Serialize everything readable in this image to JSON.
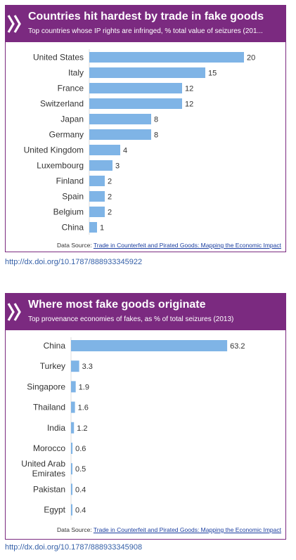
{
  "charts": [
    {
      "title": "Countries hit hardest by trade in fake goods",
      "subtitle": "Top countries whose IP rights are infringed, % total value of seizures (201...",
      "source_label": "Data Source:",
      "source_link": "Trade in Counterfeit and Pirated Goods: Mapping the Economic Impact",
      "doi": "http://dx.doi.org/10.1787/888933345922"
    },
    {
      "title": "Where most fake goods originate",
      "subtitle": "Top provenance economies of fakes, as % of total seizures (2013)",
      "source_label": "Data Source:",
      "source_link": "Trade in Counterfeit and Pirated Goods: Mapping the Economic Impact",
      "doi": "http://dx.doi.org/10.1787/888933345908"
    }
  ],
  "colors": {
    "header": "#7b2a80",
    "bar": "#7fb4e6",
    "text": "#333333",
    "link": "#3560a8"
  },
  "chart_data": [
    {
      "type": "bar",
      "orientation": "horizontal",
      "title": "Countries hit hardest by trade in fake goods",
      "categories": [
        "United States",
        "Italy",
        "France",
        "Switzerland",
        "Japan",
        "Germany",
        "United Kingdom",
        "Luxembourg",
        "Finland",
        "Spain",
        "Belgium",
        "China"
      ],
      "values": [
        20,
        15,
        12,
        12,
        8,
        8,
        4,
        3,
        2,
        2,
        2,
        1
      ],
      "xlim": [
        0,
        22
      ],
      "grid": false
    },
    {
      "type": "bar",
      "orientation": "horizontal",
      "title": "Where most fake goods originate",
      "categories": [
        "China",
        "Turkey",
        "Singapore",
        "Thailand",
        "India",
        "Morocco",
        "United Arab Emirates",
        "Pakistan",
        "Egypt"
      ],
      "values": [
        63.2,
        3.3,
        1.9,
        1.6,
        1.2,
        0.6,
        0.5,
        0.4,
        0.4
      ],
      "xlim": [
        0,
        70
      ],
      "grid": false
    }
  ]
}
